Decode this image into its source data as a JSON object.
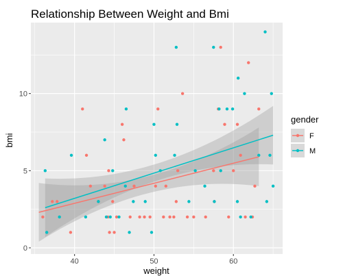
{
  "chart_data": {
    "type": "scatter",
    "title": "Relationship Between Weight and Bmi",
    "xlabel": "weight",
    "ylabel": "bmi",
    "xlim": [
      34.5,
      66.2
    ],
    "ylim": [
      -0.4,
      14.6
    ],
    "xticks": [
      40,
      50,
      60
    ],
    "yticks": [
      0,
      5,
      10
    ],
    "grid": true,
    "background": "#ebebeb",
    "legend": {
      "title": "gender",
      "position": "right",
      "entries": [
        {
          "label": "F",
          "color": "#f8766d"
        },
        {
          "label": "M",
          "color": "#00bfc4"
        }
      ]
    },
    "series": [
      {
        "name": "F",
        "color": "#f8766d",
        "points": [
          [
            36.0,
            2
          ],
          [
            37.2,
            3
          ],
          [
            37.8,
            3
          ],
          [
            39.5,
            1
          ],
          [
            41.0,
            9
          ],
          [
            41.5,
            6
          ],
          [
            42.0,
            4
          ],
          [
            43.0,
            3
          ],
          [
            43.8,
            4
          ],
          [
            44.2,
            2
          ],
          [
            44.3,
            5
          ],
          [
            44.4,
            1
          ],
          [
            44.8,
            3
          ],
          [
            45.0,
            1
          ],
          [
            45.3,
            2
          ],
          [
            46.0,
            8
          ],
          [
            46.2,
            7
          ],
          [
            47.0,
            2
          ],
          [
            47.5,
            4
          ],
          [
            48.2,
            2
          ],
          [
            48.8,
            2
          ],
          [
            49.5,
            2
          ],
          [
            50.2,
            4
          ],
          [
            50.5,
            9
          ],
          [
            51.2,
            2
          ],
          [
            51.5,
            4
          ],
          [
            52.0,
            2
          ],
          [
            52.5,
            2
          ],
          [
            52.8,
            3
          ],
          [
            53.0,
            5
          ],
          [
            53.6,
            10
          ],
          [
            54.2,
            2
          ],
          [
            55.0,
            2
          ],
          [
            56.5,
            2
          ],
          [
            57.5,
            5
          ],
          [
            57.6,
            3
          ],
          [
            58.1,
            9
          ],
          [
            58.4,
            13
          ],
          [
            58.9,
            8
          ],
          [
            59.4,
            2
          ],
          [
            60.0,
            5
          ],
          [
            60.5,
            8
          ],
          [
            60.9,
            6
          ],
          [
            61.5,
            2
          ],
          [
            61.9,
            12
          ],
          [
            62.4,
            2
          ],
          [
            62.7,
            4
          ],
          [
            63.2,
            9
          ]
        ],
        "trend": {
          "x_start": 35.5,
          "y_start": 2.3,
          "x_end": 63.2,
          "y_end": 5.9
        }
      },
      {
        "name": "M",
        "color": "#00bfc4",
        "points": [
          [
            36.3,
            5
          ],
          [
            36.5,
            1
          ],
          [
            38.1,
            2
          ],
          [
            39.6,
            6
          ],
          [
            41.4,
            2
          ],
          [
            43.0,
            3
          ],
          [
            43.8,
            7
          ],
          [
            44.0,
            2
          ],
          [
            44.5,
            2
          ],
          [
            44.8,
            5
          ],
          [
            45.6,
            2
          ],
          [
            46.5,
            9
          ],
          [
            46.4,
            4
          ],
          [
            46.9,
            1
          ],
          [
            47.4,
            3
          ],
          [
            48.9,
            3
          ],
          [
            49.7,
            1
          ],
          [
            50.0,
            8
          ],
          [
            50.2,
            6
          ],
          [
            50.8,
            5
          ],
          [
            52.6,
            6
          ],
          [
            52.8,
            13
          ],
          [
            52.9,
            8
          ],
          [
            54.4,
            3
          ],
          [
            55.2,
            5
          ],
          [
            56.4,
            4
          ],
          [
            57.5,
            13
          ],
          [
            57.6,
            3
          ],
          [
            58.2,
            9
          ],
          [
            58.4,
            5
          ],
          [
            59.2,
            9
          ],
          [
            59.9,
            9
          ],
          [
            60.5,
            3
          ],
          [
            60.6,
            11
          ],
          [
            60.9,
            2
          ],
          [
            61.4,
            10
          ],
          [
            62.2,
            2
          ],
          [
            63.2,
            6
          ],
          [
            64.0,
            14
          ],
          [
            64.2,
            3
          ],
          [
            64.6,
            6
          ],
          [
            64.8,
            10
          ],
          [
            65.0,
            4
          ]
        ],
        "trend": {
          "x_start": 36.3,
          "y_start": 2.6,
          "x_end": 65.0,
          "y_end": 7.3
        }
      }
    ]
  }
}
